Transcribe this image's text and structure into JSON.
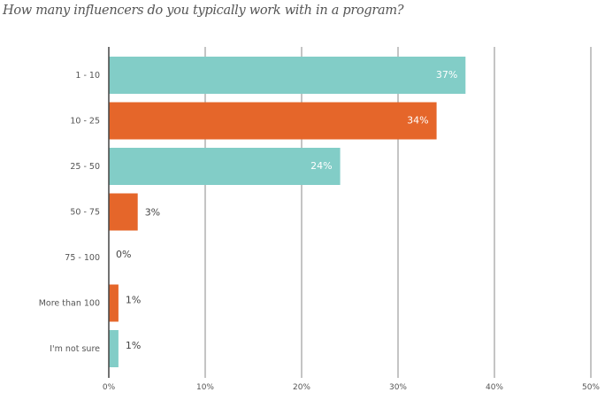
{
  "title": "How many influencers do you typically work with in a program?",
  "chart_data": {
    "type": "bar",
    "orientation": "horizontal",
    "title": "How many influencers do you typically work with in a program?",
    "categories": [
      "1 - 10",
      "10 - 25",
      "25 - 50",
      "50 - 75",
      "75 - 100",
      "More than 100",
      "I'm not sure"
    ],
    "values": [
      37,
      34,
      24,
      3,
      0,
      1,
      1
    ],
    "data_labels": [
      "37%",
      "34%",
      "24%",
      "3%",
      "0%",
      "1%",
      "1%"
    ],
    "bar_colors": [
      "#82cdc7",
      "#e5662a",
      "#82cdc7",
      "#e5662a",
      "#82cdc7",
      "#e5662a",
      "#82cdc7"
    ],
    "xlim": [
      0,
      50
    ],
    "x_ticks": [
      "0%",
      "10%",
      "20%",
      "30%",
      "40%",
      "50%"
    ],
    "grid": true,
    "xlabel": "",
    "ylabel": ""
  }
}
